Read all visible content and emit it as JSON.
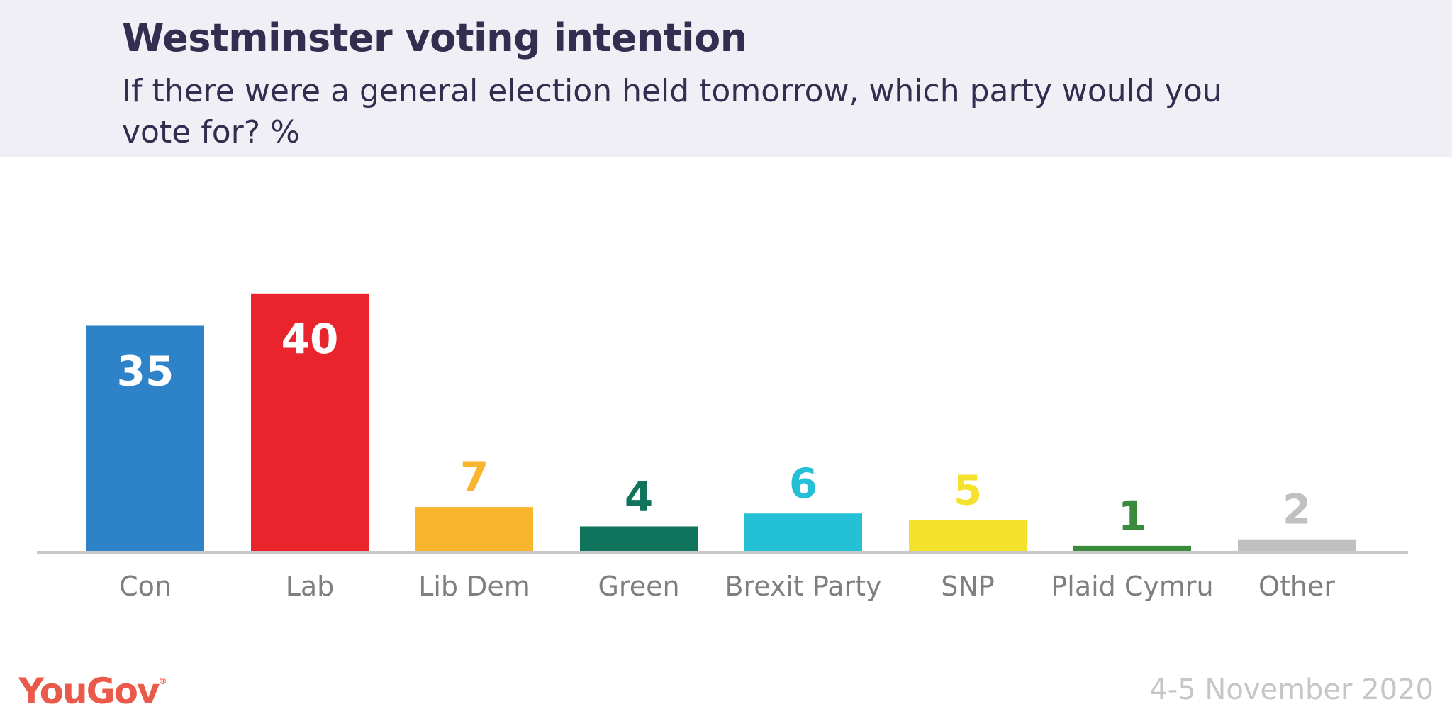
{
  "header": {
    "title": "Westminster voting intention",
    "subtitle": "If there were a general election held tomorrow, which party would you vote for? %"
  },
  "footer": {
    "brand": "YouGov",
    "brand_mark": "®",
    "date": "4-5 November 2020"
  },
  "chart_data": {
    "type": "bar",
    "title": "Westminster voting intention",
    "subtitle": "If there were a general election held tomorrow, which party would you vote for? %",
    "categories": [
      "Con",
      "Lab",
      "Lib Dem",
      "Green",
      "Brexit Party",
      "SNP",
      "Plaid Cymru",
      "Other"
    ],
    "values": [
      35,
      40,
      7,
      4,
      6,
      5,
      1,
      2
    ],
    "colors": [
      "#2e82c8",
      "#ea242c",
      "#f9b52e",
      "#10745c",
      "#23c0d6",
      "#f5e22c",
      "#3a8a3c",
      "#c0c0c0"
    ],
    "label_colors": [
      "#ffffff",
      "#ffffff",
      "#f9b52e",
      "#10745c",
      "#23c0d6",
      "#f5e22c",
      "#3a8a3c",
      "#c0c0c0"
    ],
    "label_inside": [
      true,
      true,
      false,
      false,
      false,
      false,
      false,
      false
    ],
    "axis_color": "#c8c8c8",
    "category_label_color": "#7f7f7f",
    "ylim": [
      0,
      40
    ],
    "grid": false,
    "legend": "none"
  }
}
